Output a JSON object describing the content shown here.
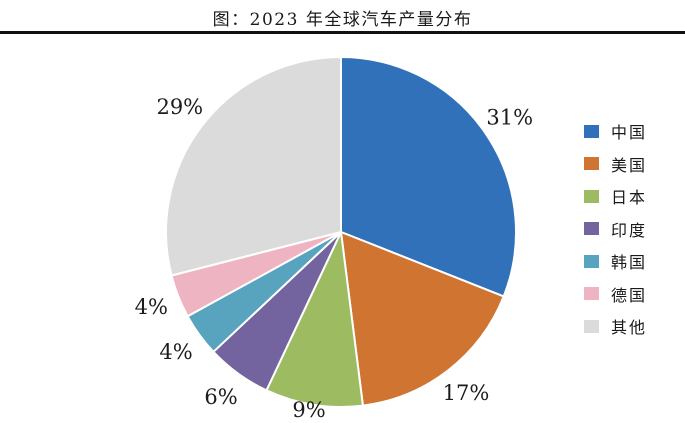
{
  "title": "图：2023 年全球汽车产量分布",
  "chart_data": {
    "type": "pie",
    "title": "图：2023 年全球汽车产量分布",
    "categories": [
      "中国",
      "美国",
      "日本",
      "印度",
      "韩国",
      "德国",
      "其他"
    ],
    "values": [
      31,
      17,
      9,
      6,
      4,
      4,
      29
    ],
    "labels": [
      "31%",
      "17%",
      "9%",
      "6%",
      "4%",
      "4%",
      "29%"
    ],
    "colors": [
      "#3071B9",
      "#CF7431",
      "#9DBB61",
      "#73639E",
      "#58A3BD",
      "#EFB4C1",
      "#DBDBDB"
    ],
    "unit": "percent",
    "start_angle_deg": 0,
    "direction": "clockwise",
    "legend_position": "right",
    "slice_border_color": "#FFFFFF",
    "label_color": "#1B1B1B",
    "title_rule_color": "#111111"
  }
}
